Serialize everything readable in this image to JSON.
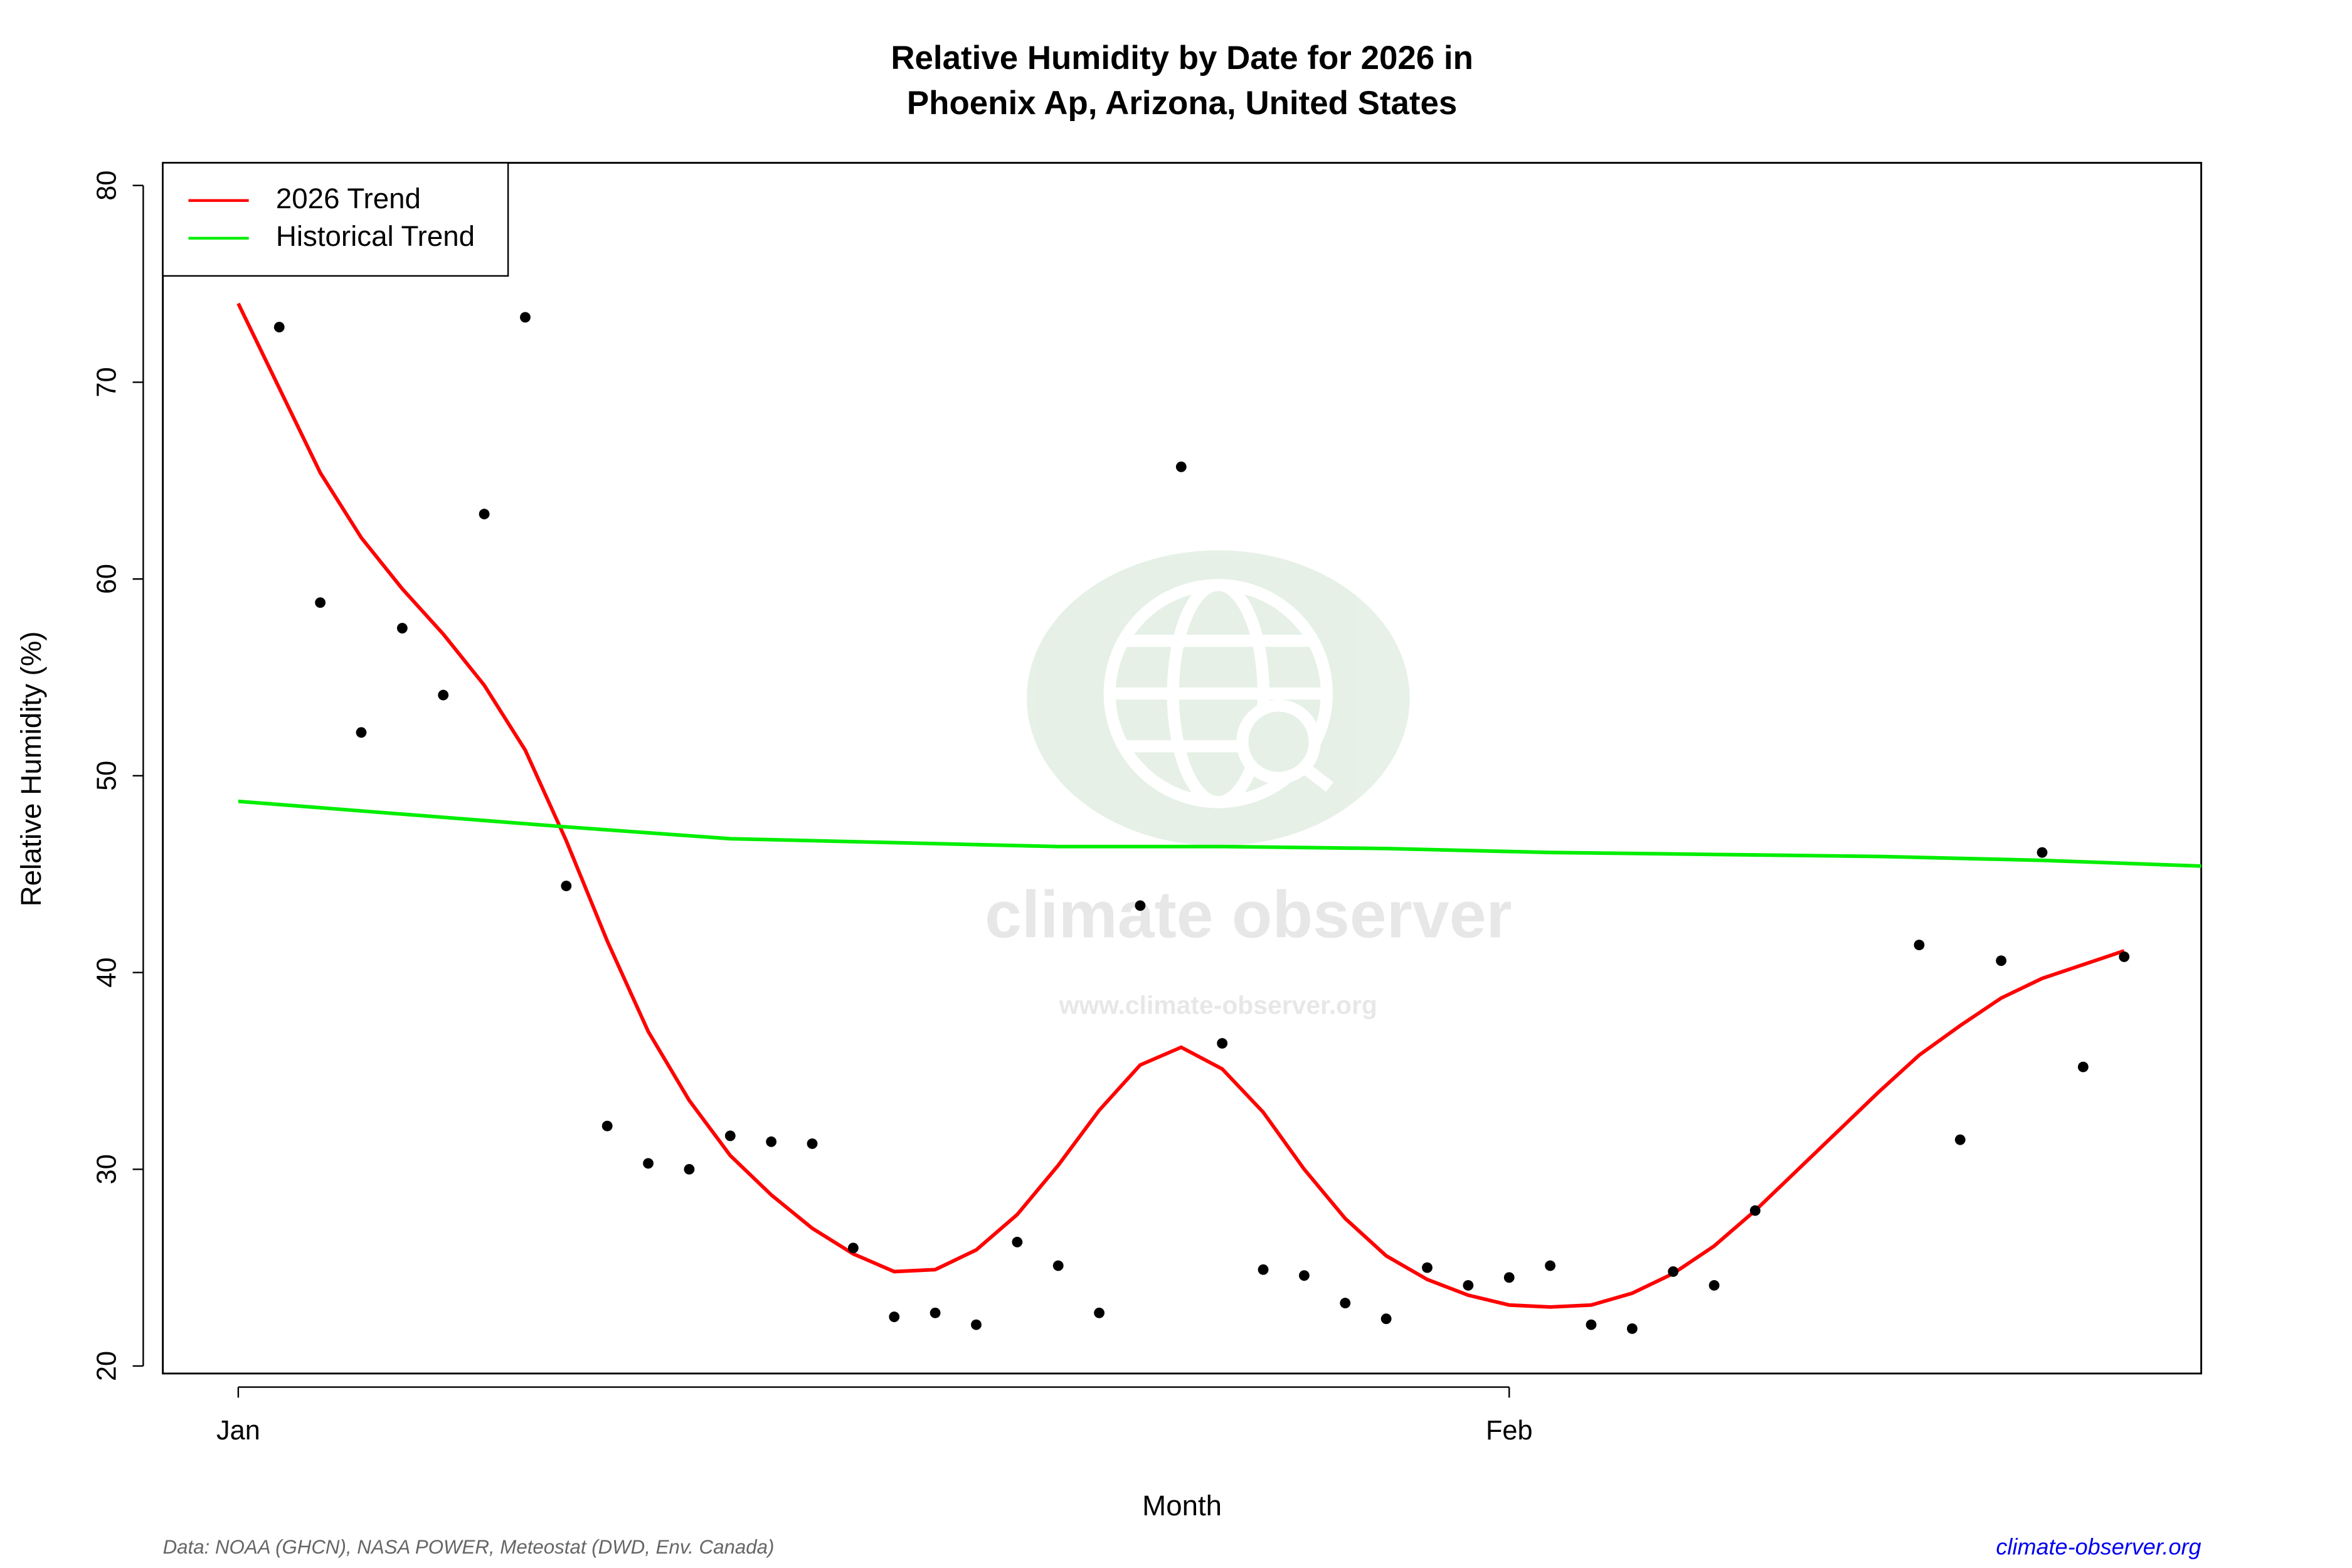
{
  "chart_data": {
    "type": "scatter",
    "title": "Relative Humidity by Date for 2026 in",
    "subtitle": "Phoenix Ap, Arizona, United States",
    "x_label": "Month",
    "y_label": "Relative Humidity (%)",
    "xlim": [
      -0.84,
      48.88
    ],
    "ylim": [
      19.62,
      81.15
    ],
    "xticks": [
      {
        "value": 1,
        "label": "Jan"
      },
      {
        "value": 32,
        "label": "Feb"
      }
    ],
    "yticks": [
      20,
      30,
      40,
      50,
      60,
      70,
      80
    ],
    "legend_position": "top-left",
    "points": {
      "color": "#000000",
      "x": [
        2,
        3,
        4,
        5,
        6,
        7,
        8,
        9,
        10,
        11,
        12,
        13,
        14,
        15,
        16,
        17,
        18,
        19,
        20,
        21,
        22,
        23,
        24,
        25,
        26,
        27,
        28,
        29,
        30,
        31,
        32,
        33,
        34,
        35,
        36,
        37,
        38,
        42,
        43,
        44,
        45,
        46,
        47
      ],
      "values": [
        72.8,
        58.8,
        52.2,
        57.5,
        54.1,
        63.3,
        73.3,
        44.4,
        32.2,
        30.3,
        30.0,
        31.7,
        31.4,
        31.3,
        26.0,
        22.5,
        22.7,
        22.1,
        26.3,
        25.1,
        22.7,
        43.4,
        65.7,
        36.4,
        24.9,
        24.6,
        23.2,
        22.4,
        25.0,
        24.1,
        24.5,
        25.1,
        22.1,
        21.9,
        24.8,
        24.1,
        27.9,
        41.4,
        31.5,
        40.6,
        46.1,
        35.2,
        40.8
      ]
    },
    "series": [
      {
        "name": "2026 Trend",
        "color": "#ff0000",
        "x": [
          1,
          2,
          3,
          4,
          5,
          6,
          7,
          8,
          9,
          10,
          11,
          12,
          13,
          14,
          15,
          16,
          17,
          18,
          19,
          20,
          21,
          22,
          23,
          24,
          25,
          26,
          27,
          28,
          29,
          30,
          31,
          32,
          33,
          34,
          35,
          36,
          37,
          38,
          39,
          40,
          41,
          42,
          43,
          44,
          45,
          46,
          47
        ],
        "values": [
          74.0,
          69.7,
          65.4,
          62.1,
          59.5,
          57.2,
          54.6,
          51.3,
          46.7,
          41.6,
          37.0,
          33.5,
          30.7,
          28.7,
          27.0,
          25.7,
          24.8,
          24.9,
          25.9,
          27.7,
          30.2,
          33.0,
          35.3,
          36.2,
          35.1,
          32.9,
          30.0,
          27.5,
          25.6,
          24.4,
          23.6,
          23.1,
          23.0,
          23.1,
          23.7,
          24.7,
          26.1,
          27.9,
          29.9,
          31.9,
          33.9,
          35.8,
          37.3,
          38.7,
          39.7,
          40.4,
          41.1
        ]
      },
      {
        "name": "Historical Trend",
        "color": "#00ee00",
        "x": [
          1,
          5,
          9,
          13,
          17,
          21,
          25,
          29,
          33,
          37,
          41,
          45,
          49
        ],
        "values": [
          48.7,
          48.05,
          47.4,
          46.8,
          46.6,
          46.4,
          46.4,
          46.3,
          46.1,
          46.0,
          45.9,
          45.7,
          45.4
        ]
      }
    ],
    "watermark": "climate observer",
    "watermark_url": "www.climate-observer.org",
    "source": "Data: NOAA (GHCN), NASA POWER, Meteostat (DWD, Env. Canada)",
    "site": "climate-observer.org"
  }
}
